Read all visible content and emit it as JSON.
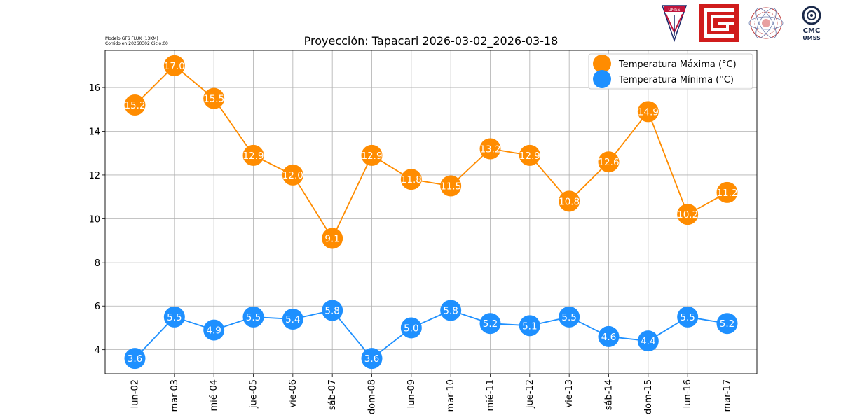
{
  "meta": {
    "model_line": "Modelo:GFS FLUX (13KM)",
    "run_line": "Corrido en:20260302 Ciclo:00"
  },
  "logos": {
    "umss_text": "UMSS",
    "cmc_text": "CMC",
    "cmc_sub": "UMSS"
  },
  "chart_data": {
    "type": "line",
    "title": "Proyección: Tapacari 2026-03-02_2026-03-18",
    "xlabel": "",
    "ylabel": "",
    "categories": [
      "lun-02",
      "mar-03",
      "mié-04",
      "jue-05",
      "vie-06",
      "sáb-07",
      "dom-08",
      "lun-09",
      "mar-10",
      "mié-11",
      "jue-12",
      "vie-13",
      "sáb-14",
      "dom-15",
      "lun-16",
      "mar-17"
    ],
    "ylim": [
      2.9,
      17.7
    ],
    "yticks": [
      4,
      6,
      8,
      10,
      12,
      14,
      16
    ],
    "grid": true,
    "legend_position": "top-right",
    "series": [
      {
        "name": "Temperatura Máxima  (°C)",
        "color": "#ff8c00",
        "values": [
          15.2,
          17.0,
          15.5,
          12.9,
          12.0,
          9.1,
          12.9,
          11.8,
          11.5,
          13.2,
          12.9,
          10.8,
          12.6,
          14.9,
          10.2,
          11.2
        ]
      },
      {
        "name": "Temperatura Mínima  (°C)",
        "color": "#1e90ff",
        "values": [
          3.6,
          5.5,
          4.9,
          5.5,
          5.4,
          5.8,
          3.6,
          5.0,
          5.8,
          5.2,
          5.1,
          5.5,
          4.6,
          4.4,
          5.5,
          5.2
        ]
      }
    ]
  }
}
